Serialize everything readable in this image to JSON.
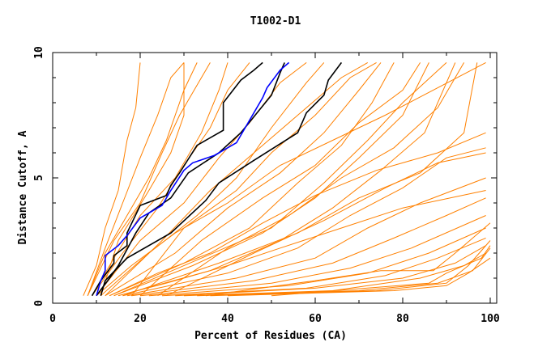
{
  "chart_data": {
    "type": "line",
    "title": "T1002-D1",
    "xlabel": "Percent of Residues (CA)",
    "ylabel": "Distance Cutoff, A",
    "xlim": [
      0,
      101.5
    ],
    "ylim": [
      0,
      10
    ],
    "xticks": [
      "0",
      "20",
      "40",
      "60",
      "80",
      "100"
    ],
    "yticks": [
      "0",
      "5",
      "10"
    ],
    "grid": false,
    "colors": {
      "others": "#ff8000",
      "highlight_black": "#000000",
      "highlight_blue": "#0000ff"
    },
    "highlight_series": [
      {
        "name": "black-1",
        "color": "#000000",
        "points": [
          [
            9,
            0.3
          ],
          [
            11,
            0.9
          ],
          [
            14,
            1.6
          ],
          [
            14,
            1.9
          ],
          [
            17,
            2.3
          ],
          [
            17,
            2.8
          ],
          [
            20,
            3.9
          ],
          [
            26,
            4.3
          ],
          [
            27,
            4.7
          ],
          [
            29,
            5.2
          ],
          [
            33,
            6.3
          ],
          [
            39,
            6.9
          ],
          [
            39,
            8.0
          ],
          [
            43,
            8.9
          ],
          [
            46,
            9.3
          ],
          [
            48,
            9.6
          ]
        ]
      },
      {
        "name": "black-2",
        "color": "#000000",
        "points": [
          [
            10,
            0.3
          ],
          [
            13,
            1.0
          ],
          [
            15,
            1.5
          ],
          [
            19,
            2.8
          ],
          [
            22,
            3.6
          ],
          [
            27,
            4.2
          ],
          [
            31,
            5.2
          ],
          [
            38,
            6.0
          ],
          [
            43,
            6.8
          ],
          [
            50,
            8.3
          ],
          [
            52,
            9.2
          ],
          [
            53,
            9.6
          ]
        ]
      },
      {
        "name": "black-3",
        "color": "#000000",
        "points": [
          [
            11,
            0.3
          ],
          [
            12,
            0.9
          ],
          [
            17,
            1.8
          ],
          [
            27,
            2.8
          ],
          [
            35,
            4.1
          ],
          [
            38,
            4.8
          ],
          [
            46,
            5.7
          ],
          [
            56,
            6.8
          ],
          [
            58,
            7.6
          ],
          [
            62,
            8.3
          ],
          [
            63,
            8.9
          ],
          [
            66,
            9.6
          ]
        ]
      },
      {
        "name": "blue",
        "color": "#0000ff",
        "points": [
          [
            10,
            0.3
          ],
          [
            11,
            0.9
          ],
          [
            12,
            1.3
          ],
          [
            12,
            1.9
          ],
          [
            15,
            2.3
          ],
          [
            17,
            2.7
          ],
          [
            20,
            3.4
          ],
          [
            25,
            3.9
          ],
          [
            27,
            4.5
          ],
          [
            30,
            5.3
          ],
          [
            32,
            5.6
          ],
          [
            37,
            5.9
          ],
          [
            42,
            6.4
          ],
          [
            48,
            8.2
          ],
          [
            49,
            8.6
          ],
          [
            52,
            9.3
          ],
          [
            54,
            9.6
          ]
        ]
      }
    ],
    "other_series": [
      [
        [
          7,
          0.3
        ],
        [
          10,
          1.5
        ],
        [
          12,
          3.0
        ],
        [
          15,
          4.5
        ],
        [
          17,
          6.5
        ],
        [
          19,
          7.8
        ],
        [
          20,
          9.6
        ]
      ],
      [
        [
          8,
          0.3
        ],
        [
          12,
          2.0
        ],
        [
          17,
          3.5
        ],
        [
          22,
          5.0
        ],
        [
          26,
          6.5
        ],
        [
          30,
          8.5
        ],
        [
          33,
          9.6
        ]
      ],
      [
        [
          8,
          0.3
        ],
        [
          14,
          2.5
        ],
        [
          20,
          4.0
        ],
        [
          25,
          6.0
        ],
        [
          29,
          7.5
        ],
        [
          33,
          8.7
        ],
        [
          36,
          9.6
        ]
      ],
      [
        [
          9,
          0.3
        ],
        [
          16,
          2.0
        ],
        [
          24,
          3.8
        ],
        [
          30,
          5.5
        ],
        [
          36,
          7.0
        ],
        [
          40,
          8.5
        ],
        [
          45,
          9.6
        ]
      ],
      [
        [
          10,
          0.3
        ],
        [
          20,
          2.5
        ],
        [
          30,
          4.0
        ],
        [
          38,
          5.8
        ],
        [
          45,
          7.2
        ],
        [
          52,
          8.8
        ],
        [
          58,
          9.6
        ]
      ],
      [
        [
          11,
          0.3
        ],
        [
          22,
          2.0
        ],
        [
          33,
          3.5
        ],
        [
          42,
          5.0
        ],
        [
          50,
          7.0
        ],
        [
          58,
          8.8
        ],
        [
          62,
          9.6
        ]
      ],
      [
        [
          12,
          0.3
        ],
        [
          25,
          2.5
        ],
        [
          36,
          4.5
        ],
        [
          46,
          6.0
        ],
        [
          56,
          7.5
        ],
        [
          66,
          9.0
        ],
        [
          72,
          9.6
        ]
      ],
      [
        [
          12,
          0.3
        ],
        [
          28,
          2.0
        ],
        [
          40,
          3.8
        ],
        [
          52,
          5.2
        ],
        [
          62,
          6.8
        ],
        [
          70,
          8.5
        ],
        [
          75,
          9.6
        ]
      ],
      [
        [
          13,
          0.3
        ],
        [
          30,
          1.6
        ],
        [
          45,
          3.0
        ],
        [
          56,
          4.8
        ],
        [
          66,
          6.3
        ],
        [
          73,
          8.0
        ],
        [
          78,
          9.6
        ]
      ],
      [
        [
          14,
          0.3
        ],
        [
          32,
          1.5
        ],
        [
          48,
          2.8
        ],
        [
          60,
          4.2
        ],
        [
          70,
          5.8
        ],
        [
          80,
          7.5
        ],
        [
          86,
          9.6
        ]
      ],
      [
        [
          15,
          0.3
        ],
        [
          36,
          1.3
        ],
        [
          52,
          2.5
        ],
        [
          64,
          3.8
        ],
        [
          75,
          5.3
        ],
        [
          85,
          6.8
        ],
        [
          92,
          9.6
        ]
      ],
      [
        [
          16,
          0.3
        ],
        [
          40,
          1.2
        ],
        [
          56,
          2.2
        ],
        [
          68,
          3.5
        ],
        [
          80,
          4.6
        ],
        [
          90,
          5.8
        ],
        [
          99,
          6.2
        ]
      ],
      [
        [
          17,
          0.3
        ],
        [
          42,
          1.0
        ],
        [
          60,
          1.8
        ],
        [
          72,
          3.0
        ],
        [
          84,
          4.0
        ],
        [
          99,
          5.0
        ]
      ],
      [
        [
          18,
          0.3
        ],
        [
          46,
          0.9
        ],
        [
          64,
          1.6
        ],
        [
          78,
          2.6
        ],
        [
          90,
          3.5
        ],
        [
          99,
          4.2
        ]
      ],
      [
        [
          20,
          0.3
        ],
        [
          50,
          0.8
        ],
        [
          68,
          1.4
        ],
        [
          82,
          2.2
        ],
        [
          99,
          3.5
        ]
      ],
      [
        [
          22,
          0.3
        ],
        [
          54,
          0.7
        ],
        [
          72,
          1.2
        ],
        [
          86,
          2.0
        ],
        [
          99,
          3.0
        ]
      ],
      [
        [
          25,
          0.3
        ],
        [
          58,
          0.6
        ],
        [
          76,
          1.1
        ],
        [
          88,
          1.8
        ],
        [
          99,
          2.6
        ]
      ],
      [
        [
          28,
          0.3
        ],
        [
          60,
          0.6
        ],
        [
          80,
          1.0
        ],
        [
          92,
          1.6
        ],
        [
          99,
          2.3
        ]
      ],
      [
        [
          30,
          0.3
        ],
        [
          64,
          0.5
        ],
        [
          84,
          1.0
        ],
        [
          94,
          1.5
        ],
        [
          99,
          2.0
        ]
      ],
      [
        [
          33,
          0.3
        ],
        [
          70,
          0.5
        ],
        [
          88,
          0.8
        ],
        [
          96,
          1.3
        ],
        [
          100,
          2.2
        ]
      ],
      [
        [
          36,
          0.3
        ],
        [
          74,
          0.5
        ],
        [
          90,
          0.8
        ],
        [
          95,
          1.5
        ],
        [
          100,
          2.5
        ]
      ],
      [
        [
          40,
          0.3
        ],
        [
          78,
          0.5
        ],
        [
          90,
          0.7
        ],
        [
          95,
          1.2
        ],
        [
          100,
          1.8
        ]
      ],
      [
        [
          15,
          0.3
        ],
        [
          26,
          0.8
        ],
        [
          40,
          1.5
        ],
        [
          52,
          2.2
        ],
        [
          66,
          3.0
        ],
        [
          80,
          3.8
        ],
        [
          99,
          4.5
        ]
      ],
      [
        [
          13,
          0.3
        ],
        [
          24,
          1.2
        ],
        [
          36,
          2.0
        ],
        [
          48,
          3.2
        ],
        [
          60,
          4.3
        ],
        [
          74,
          5.3
        ],
        [
          88,
          6.0
        ],
        [
          99,
          6.8
        ]
      ],
      [
        [
          10,
          0.3
        ],
        [
          18,
          1.5
        ],
        [
          28,
          2.8
        ],
        [
          40,
          4.0
        ],
        [
          52,
          5.5
        ],
        [
          64,
          6.5
        ],
        [
          76,
          7.5
        ],
        [
          99,
          9.6
        ]
      ],
      [
        [
          9,
          0.3
        ],
        [
          14,
          1.8
        ],
        [
          20,
          3.5
        ],
        [
          28,
          5.0
        ],
        [
          34,
          6.8
        ],
        [
          38,
          8.5
        ],
        [
          40,
          9.6
        ]
      ],
      [
        [
          11,
          0.3
        ],
        [
          15,
          2.5
        ],
        [
          22,
          4.5
        ],
        [
          27,
          6.0
        ],
        [
          30,
          7.5
        ],
        [
          30,
          9.6
        ]
      ],
      [
        [
          14,
          0.3
        ],
        [
          34,
          1.8
        ],
        [
          50,
          3.0
        ],
        [
          62,
          4.8
        ],
        [
          72,
          6.5
        ],
        [
          80,
          8.0
        ],
        [
          90,
          9.6
        ]
      ],
      [
        [
          16,
          0.3
        ],
        [
          38,
          1.6
        ],
        [
          56,
          2.8
        ],
        [
          70,
          4.2
        ],
        [
          84,
          5.2
        ],
        [
          94,
          6.8
        ],
        [
          97,
          9.6
        ]
      ],
      [
        [
          35,
          0.3
        ],
        [
          60,
          0.9
        ],
        [
          75,
          1.3
        ],
        [
          87,
          1.3
        ],
        [
          92,
          2.0
        ],
        [
          100,
          3.2
        ]
      ],
      [
        [
          50,
          0.3
        ],
        [
          86,
          0.8
        ],
        [
          90,
          1.2
        ],
        [
          98,
          1.8
        ],
        [
          100,
          2.3
        ]
      ],
      [
        [
          18,
          0.3
        ],
        [
          30,
          3.0
        ],
        [
          42,
          4.5
        ],
        [
          50,
          6.0
        ],
        [
          60,
          7.5
        ],
        [
          68,
          9.0
        ],
        [
          74,
          9.6
        ]
      ],
      [
        [
          20,
          0.3
        ],
        [
          34,
          2.5
        ],
        [
          48,
          4.2
        ],
        [
          60,
          5.5
        ],
        [
          70,
          7.2
        ],
        [
          80,
          8.5
        ],
        [
          84,
          9.6
        ]
      ],
      [
        [
          24,
          0.3
        ],
        [
          40,
          2.2
        ],
        [
          54,
          3.5
        ],
        [
          66,
          5.0
        ],
        [
          78,
          6.2
        ],
        [
          88,
          7.8
        ],
        [
          94,
          9.6
        ]
      ],
      [
        [
          8,
          0.3
        ],
        [
          12,
          2.2
        ],
        [
          16,
          4.0
        ],
        [
          20,
          5.8
        ],
        [
          24,
          7.5
        ],
        [
          27,
          9.0
        ],
        [
          30,
          9.6
        ]
      ],
      [
        [
          26,
          0.3
        ],
        [
          46,
          2.0
        ],
        [
          62,
          3.3
        ],
        [
          76,
          4.6
        ],
        [
          88,
          5.6
        ],
        [
          99,
          6.0
        ]
      ]
    ]
  }
}
